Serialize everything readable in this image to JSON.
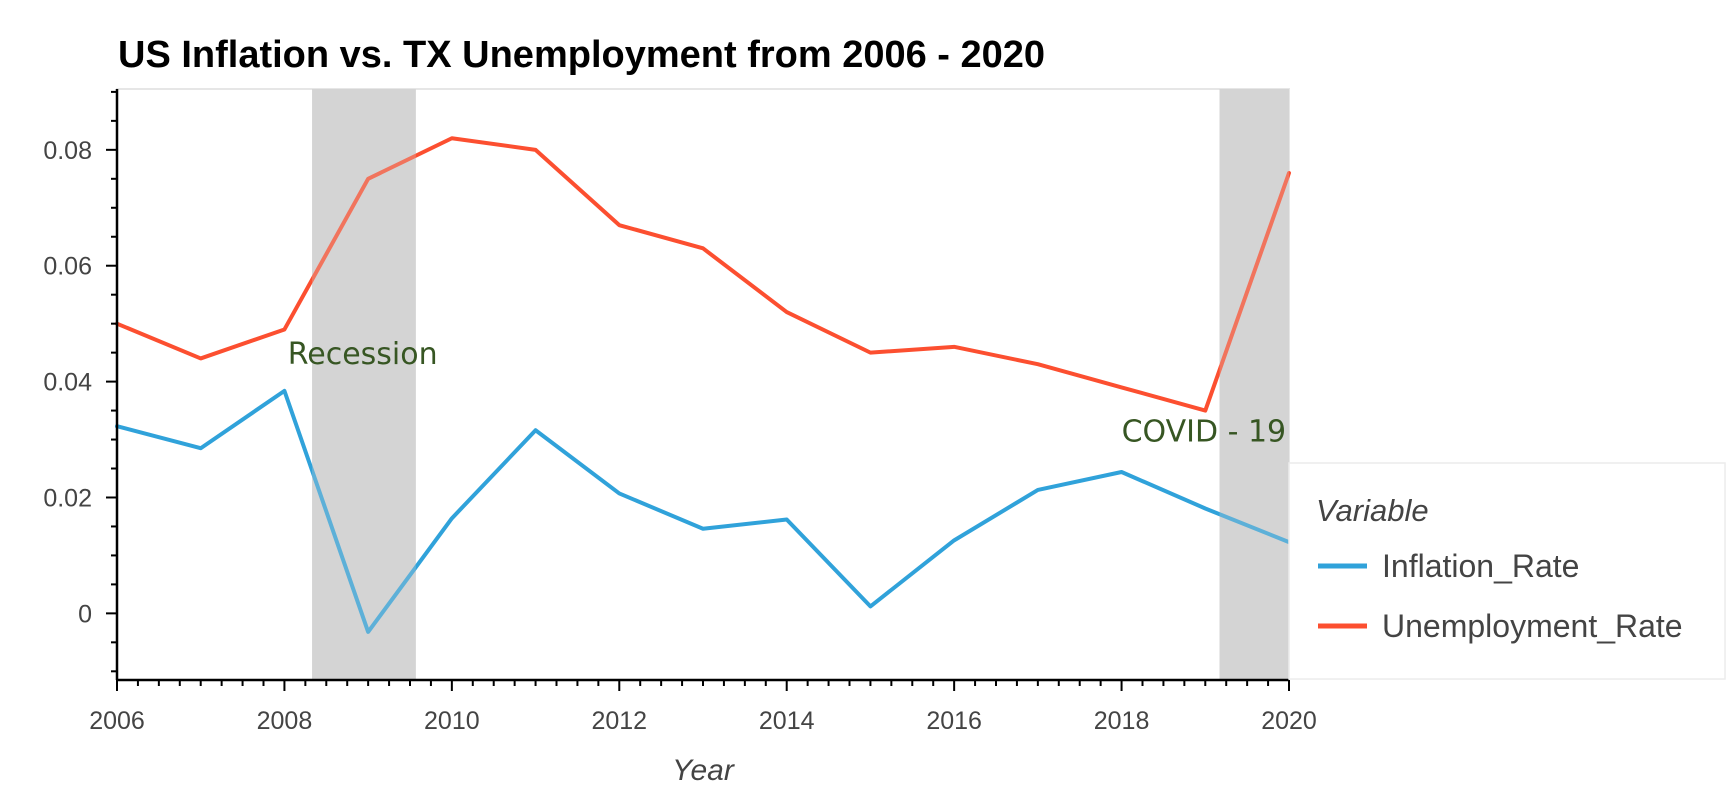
{
  "chart_data": {
    "type": "line",
    "title": "US Inflation vs. TX Unemployment from 2006 - 2020",
    "xlabel": "Year",
    "ylabel": "",
    "x": [
      2006,
      2007,
      2008,
      2009,
      2010,
      2011,
      2012,
      2013,
      2014,
      2015,
      2016,
      2017,
      2018,
      2019,
      2020
    ],
    "xlim": [
      2006,
      2020
    ],
    "ylim": [
      -0.0115,
      0.0905
    ],
    "x_ticks": [
      2006,
      2008,
      2010,
      2012,
      2014,
      2016,
      2018,
      2020
    ],
    "x_tick_labels": [
      "2006",
      "2008",
      "2010",
      "2012",
      "2014",
      "2016",
      "2018",
      "2020"
    ],
    "y_ticks": [
      0,
      0.02,
      0.04,
      0.06,
      0.08
    ],
    "y_tick_labels": [
      "0",
      "0.02",
      "0.04",
      "0.06",
      "0.08"
    ],
    "grid": false,
    "series": [
      {
        "name": "Inflation_Rate",
        "color": "#30a2da",
        "values": [
          0.0323,
          0.0285,
          0.0384,
          -0.0032,
          0.0164,
          0.0316,
          0.0207,
          0.0146,
          0.0162,
          0.0012,
          0.0126,
          0.0213,
          0.0244,
          0.0181,
          0.0123
        ]
      },
      {
        "name": "Unemployment_Rate",
        "color": "#fc4f30",
        "values": [
          0.05,
          0.044,
          0.049,
          0.075,
          0.082,
          0.08,
          0.067,
          0.063,
          0.052,
          0.045,
          0.046,
          0.043,
          0.039,
          0.035,
          0.076
        ]
      }
    ],
    "shaded_regions": [
      {
        "x_start": 2008.33,
        "x_end": 2009.57,
        "color": "#d3d3d3"
      },
      {
        "x_start": 2019.17,
        "x_end": 2020.0,
        "color": "#d3d3d3"
      }
    ],
    "annotations": [
      {
        "text": "Recession",
        "x": 2008.04,
        "y": 0.043
      },
      {
        "text": "COVID - 19",
        "x": 2018.0,
        "y": 0.0297
      }
    ],
    "legend": {
      "title": "Variable",
      "placement": "right",
      "entries": [
        "Inflation_Rate",
        "Unemployment_Rate"
      ]
    }
  }
}
